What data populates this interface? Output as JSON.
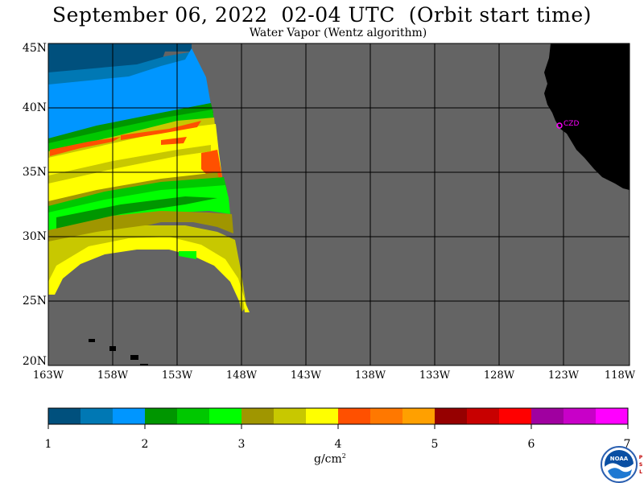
{
  "title": "September 06, 2022  02-04 UTC  (Orbit start time)",
  "subtitle": "Water Vapor (Wentz algorithm)",
  "lat_labels": [
    "45N",
    "40N",
    "35N",
    "30N",
    "25N",
    "20N"
  ],
  "lon_labels": [
    "163W",
    "158W",
    "153W",
    "148W",
    "143W",
    "138W",
    "133W",
    "128W",
    "123W",
    "118W"
  ],
  "station_label": "CZD",
  "colorbar": {
    "ticks": [
      "1",
      "2",
      "3",
      "4",
      "5",
      "6",
      "7"
    ],
    "units": "g/cm",
    "units_sup": "2",
    "colors": [
      "#00507d",
      "#0078b4",
      "#0096ff",
      "#009600",
      "#00c800",
      "#00ff00",
      "#a09600",
      "#c8c800",
      "#ffff00",
      "#ff5000",
      "#ff7800",
      "#ffa000",
      "#960000",
      "#c80000",
      "#ff0000",
      "#a000a0",
      "#c800c8",
      "#ff00ff"
    ]
  },
  "colors": {
    "ocean_no_data": "#646464",
    "land": "#000000",
    "grid": "#000000",
    "station": "#ff00ff"
  },
  "logo": {
    "name": "NOAA",
    "side_letters": "PSL"
  }
}
